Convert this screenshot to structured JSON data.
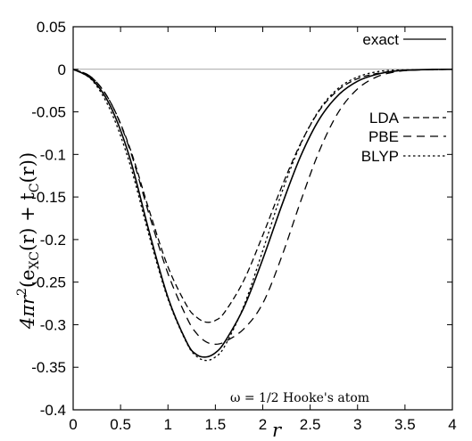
{
  "chart_data": {
    "type": "line",
    "xlabel": "r",
    "ylabel": {
      "main": "4πr",
      "sup": "2",
      "open": "(e",
      "sub1": "XC",
      "mid": "(r) + t",
      "sub2": "C",
      "close": "(r))"
    },
    "xlim": [
      0,
      4
    ],
    "ylim": [
      -0.4,
      0.05
    ],
    "xticks": [
      "0",
      "0.5",
      "1",
      "1.5",
      "2",
      "2.5",
      "3",
      "3.5",
      "4"
    ],
    "yticks": [
      "0.05",
      "0",
      "-0.05",
      "-0.1",
      "-0.15",
      "-0.2",
      "-0.25",
      "-0.3",
      "-0.35",
      "-0.4"
    ],
    "annotation": "ω = 1/2 Hooke's atom",
    "zero_line": true,
    "legend_position": "top-right",
    "series": [
      {
        "name": "exact",
        "dash": "solid",
        "points": [
          [
            0,
            0
          ],
          [
            0.2,
            -0.012
          ],
          [
            0.4,
            -0.045
          ],
          [
            0.6,
            -0.105
          ],
          [
            0.8,
            -0.19
          ],
          [
            1.0,
            -0.268
          ],
          [
            1.2,
            -0.321
          ],
          [
            1.3,
            -0.335
          ],
          [
            1.4,
            -0.338
          ],
          [
            1.5,
            -0.333
          ],
          [
            1.6,
            -0.32
          ],
          [
            1.8,
            -0.28
          ],
          [
            2.0,
            -0.223
          ],
          [
            2.2,
            -0.16
          ],
          [
            2.4,
            -0.102
          ],
          [
            2.6,
            -0.058
          ],
          [
            2.8,
            -0.03
          ],
          [
            3.0,
            -0.014
          ],
          [
            3.2,
            -0.006
          ],
          [
            3.4,
            -0.002
          ],
          [
            3.6,
            -0.0008
          ],
          [
            3.8,
            -0.0002
          ],
          [
            4.0,
            0
          ]
        ]
      },
      {
        "name": "LDA",
        "dash": "long",
        "points": [
          [
            0,
            0
          ],
          [
            0.2,
            -0.01
          ],
          [
            0.4,
            -0.04
          ],
          [
            0.6,
            -0.093
          ],
          [
            0.8,
            -0.165
          ],
          [
            1.0,
            -0.232
          ],
          [
            1.2,
            -0.278
          ],
          [
            1.3,
            -0.291
          ],
          [
            1.4,
            -0.297
          ],
          [
            1.5,
            -0.295
          ],
          [
            1.6,
            -0.285
          ],
          [
            1.8,
            -0.248
          ],
          [
            2.0,
            -0.195
          ],
          [
            2.2,
            -0.138
          ],
          [
            2.4,
            -0.087
          ],
          [
            2.6,
            -0.048
          ],
          [
            2.8,
            -0.024
          ],
          [
            3.0,
            -0.011
          ],
          [
            3.2,
            -0.005
          ],
          [
            3.4,
            -0.002
          ],
          [
            3.6,
            -0.0007
          ],
          [
            4.0,
            0
          ]
        ]
      },
      {
        "name": "PBE",
        "dash": "medium",
        "points": [
          [
            0,
            0
          ],
          [
            0.2,
            -0.01
          ],
          [
            0.4,
            -0.04
          ],
          [
            0.6,
            -0.095
          ],
          [
            0.8,
            -0.17
          ],
          [
            1.0,
            -0.24
          ],
          [
            1.2,
            -0.292
          ],
          [
            1.3,
            -0.31
          ],
          [
            1.4,
            -0.32
          ],
          [
            1.5,
            -0.323
          ],
          [
            1.6,
            -0.32
          ],
          [
            1.8,
            -0.305
          ],
          [
            2.0,
            -0.275
          ],
          [
            2.2,
            -0.22
          ],
          [
            2.4,
            -0.155
          ],
          [
            2.6,
            -0.095
          ],
          [
            2.8,
            -0.05
          ],
          [
            3.0,
            -0.023
          ],
          [
            3.2,
            -0.009
          ],
          [
            3.4,
            -0.003
          ],
          [
            3.6,
            -0.001
          ],
          [
            4.0,
            0
          ]
        ]
      },
      {
        "name": "BLYP",
        "dash": "dotted",
        "points": [
          [
            0,
            0
          ],
          [
            0.2,
            -0.013
          ],
          [
            0.4,
            -0.05
          ],
          [
            0.6,
            -0.112
          ],
          [
            0.8,
            -0.195
          ],
          [
            1.0,
            -0.27
          ],
          [
            1.2,
            -0.322
          ],
          [
            1.3,
            -0.337
          ],
          [
            1.4,
            -0.342
          ],
          [
            1.5,
            -0.338
          ],
          [
            1.6,
            -0.325
          ],
          [
            1.8,
            -0.278
          ],
          [
            2.0,
            -0.213
          ],
          [
            2.2,
            -0.145
          ],
          [
            2.4,
            -0.088
          ],
          [
            2.6,
            -0.047
          ],
          [
            2.8,
            -0.022
          ],
          [
            3.0,
            -0.009
          ],
          [
            3.2,
            -0.003
          ],
          [
            3.4,
            -0.001
          ],
          [
            4.0,
            0
          ]
        ]
      }
    ]
  }
}
